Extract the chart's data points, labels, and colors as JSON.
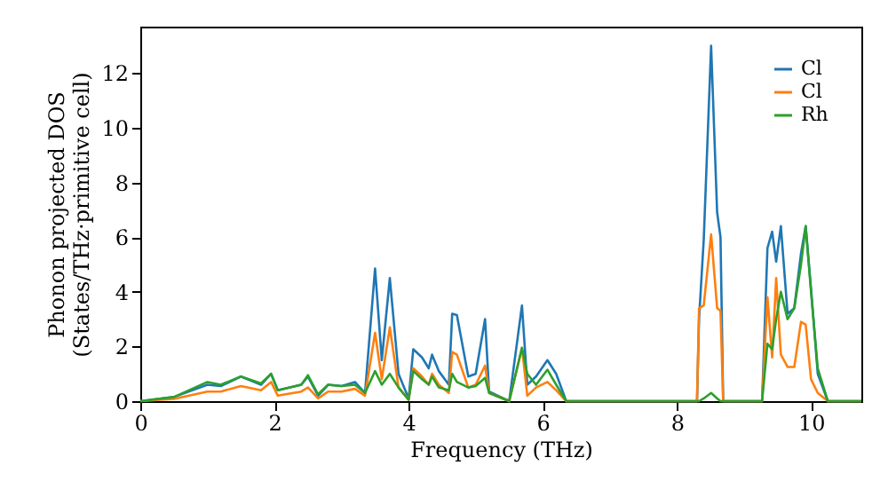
{
  "chart_data": {
    "type": "line",
    "xlabel": "Frequency (THz)",
    "ylabel": "Phonon projected DOS\n(States/THz·primitive cell)",
    "x": [
      0,
      0.5,
      1.0,
      1.2,
      1.5,
      1.8,
      1.95,
      2.05,
      2.4,
      2.5,
      2.65,
      2.8,
      3.0,
      3.2,
      3.35,
      3.5,
      3.6,
      3.72,
      3.85,
      4.0,
      4.07,
      4.2,
      4.3,
      4.35,
      4.45,
      4.6,
      4.65,
      4.72,
      4.89,
      5.0,
      5.14,
      5.2,
      5.5,
      5.69,
      5.77,
      5.9,
      6.07,
      6.2,
      6.35,
      8.3,
      8.33,
      8.4,
      8.51,
      8.6,
      8.65,
      8.69,
      9.27,
      9.35,
      9.42,
      9.48,
      9.55,
      9.65,
      9.75,
      9.85,
      9.92,
      10.0,
      10.1,
      10.25,
      10.75
    ],
    "series": [
      {
        "name": "Cl",
        "color": "#1f77b4",
        "values": [
          0,
          0.15,
          0.6,
          0.55,
          0.9,
          0.6,
          1.0,
          0.4,
          0.6,
          0.9,
          0.2,
          0.6,
          0.55,
          0.7,
          0.3,
          4.85,
          1.5,
          4.5,
          1.0,
          0.1,
          1.9,
          1.6,
          1.2,
          1.7,
          1.1,
          0.6,
          3.2,
          3.15,
          0.9,
          1.0,
          3.0,
          0.35,
          0,
          3.5,
          0.6,
          0.9,
          1.5,
          1.0,
          0,
          0,
          3.0,
          5.9,
          13.0,
          6.9,
          6.0,
          0,
          0,
          5.6,
          6.2,
          5.1,
          6.4,
          3.2,
          3.4,
          5.4,
          6.4,
          4.1,
          1.0,
          0,
          0
        ]
      },
      {
        "name": "Cl",
        "color": "#ff7f0e",
        "values": [
          0,
          0.08,
          0.35,
          0.35,
          0.55,
          0.4,
          0.7,
          0.2,
          0.35,
          0.5,
          0.1,
          0.35,
          0.35,
          0.45,
          0.2,
          2.5,
          0.8,
          2.7,
          0.5,
          0.05,
          1.2,
          0.9,
          0.6,
          1.0,
          0.6,
          0.3,
          1.8,
          1.7,
          0.5,
          0.6,
          1.3,
          0.3,
          0,
          1.95,
          0.2,
          0.5,
          0.7,
          0.4,
          0,
          0,
          3.4,
          3.5,
          6.1,
          3.4,
          3.3,
          0,
          0,
          3.8,
          1.6,
          4.5,
          1.7,
          1.25,
          1.25,
          2.9,
          2.8,
          0.8,
          0.3,
          0,
          0
        ]
      },
      {
        "name": "Rh",
        "color": "#2ca02c",
        "values": [
          0,
          0.15,
          0.7,
          0.6,
          0.9,
          0.65,
          1.0,
          0.4,
          0.6,
          0.95,
          0.25,
          0.6,
          0.55,
          0.6,
          0.3,
          1.1,
          0.6,
          1.0,
          0.5,
          0.05,
          1.1,
          0.8,
          0.6,
          0.9,
          0.5,
          0.4,
          1.0,
          0.7,
          0.5,
          0.55,
          0.85,
          0.3,
          0,
          1.95,
          1.0,
          0.6,
          1.15,
          0.6,
          0,
          0,
          0,
          0.1,
          0.3,
          0.1,
          0,
          0,
          0,
          2.1,
          1.9,
          3.0,
          4.0,
          3.0,
          3.4,
          5.0,
          6.4,
          4.0,
          1.2,
          0,
          0
        ]
      }
    ],
    "xlim": [
      0,
      10.75
    ],
    "ylim": [
      0,
      13.7
    ],
    "xticks": [
      0,
      2,
      4,
      6,
      8,
      10
    ],
    "yticks": [
      0,
      2,
      4,
      6,
      8,
      10,
      12
    ],
    "grid": false,
    "legend": "top right",
    "marker": "none",
    "line_style": "solid"
  }
}
